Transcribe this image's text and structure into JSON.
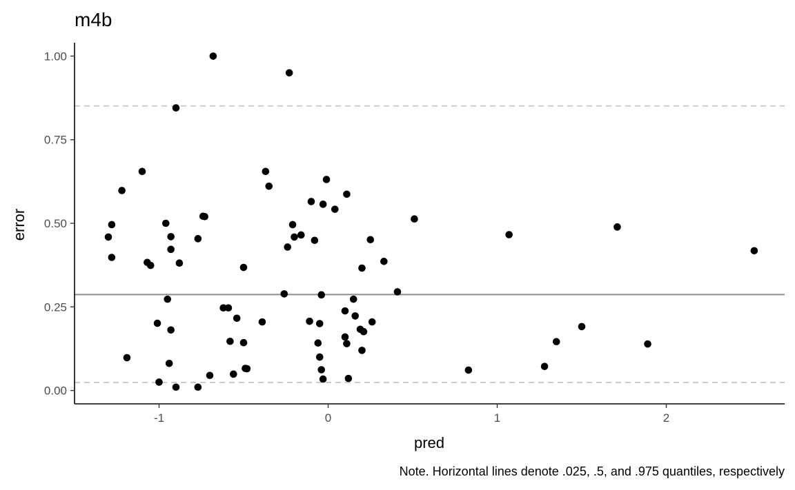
{
  "chart_data": {
    "type": "scatter",
    "title": "m4b",
    "xlabel": "pred",
    "ylabel": "error",
    "caption": "Note. Horizontal lines denote .025, .5, and .975 quantiles, respectively",
    "xlim": [
      -1.5,
      2.7
    ],
    "ylim": [
      -0.04,
      1.04
    ],
    "xticks": [
      -1,
      0,
      1,
      2
    ],
    "xtick_labels": [
      "-1",
      "0",
      "1",
      "2"
    ],
    "yticks": [
      0,
      0.25,
      0.5,
      0.75,
      1.0
    ],
    "ytick_labels": [
      "0.00",
      "0.25",
      "0.50",
      "0.75",
      "1.00"
    ],
    "grid": false,
    "colors": {
      "points": "#000000",
      "median_line": "#8c8c8c",
      "quantile_line": "#c8c8c8"
    },
    "reference_lines": [
      {
        "y": 0.024,
        "style": "dashed"
      },
      {
        "y": 0.287,
        "style": "solid"
      },
      {
        "y": 0.851,
        "style": "dashed"
      }
    ],
    "x": [
      -0.68,
      -0.23,
      -0.9,
      -1.1,
      -1.22,
      -1.28,
      -1.3,
      -1.28,
      -1.07,
      -1.05,
      -0.96,
      -0.93,
      -0.93,
      -0.88,
      -0.74,
      -0.73,
      -0.77,
      -0.37,
      -0.35,
      -0.5,
      -0.24,
      -0.21,
      -0.2,
      -0.16,
      -0.1,
      -0.08,
      -0.03,
      -0.01,
      0.04,
      0.11,
      0.25,
      0.2,
      0.33,
      0.51,
      -0.95,
      -1.01,
      -0.93,
      -1.19,
      -0.94,
      -1.0,
      -0.9,
      -0.77,
      -0.7,
      -0.62,
      -0.59,
      -0.58,
      -0.54,
      -0.56,
      -0.5,
      -0.49,
      -0.48,
      -0.39,
      -0.26,
      -0.11,
      -0.05,
      -0.04,
      -0.06,
      -0.05,
      -0.04,
      -0.03,
      0.1,
      0.11,
      0.1,
      0.12,
      0.15,
      0.16,
      0.19,
      0.21,
      0.2,
      0.26,
      0.41,
      0.83,
      1.07,
      1.28,
      1.35,
      1.5,
      1.71,
      1.89,
      2.52
    ],
    "y": [
      1.0,
      0.95,
      0.845,
      0.655,
      0.598,
      0.496,
      0.459,
      0.398,
      0.383,
      0.374,
      0.5,
      0.46,
      0.422,
      0.381,
      0.521,
      0.52,
      0.454,
      0.655,
      0.611,
      0.368,
      0.429,
      0.496,
      0.459,
      0.465,
      0.565,
      0.449,
      0.557,
      0.631,
      0.542,
      0.587,
      0.451,
      0.366,
      0.386,
      0.513,
      0.273,
      0.201,
      0.181,
      0.098,
      0.081,
      0.025,
      0.01,
      0.01,
      0.045,
      0.247,
      0.247,
      0.147,
      0.216,
      0.049,
      0.143,
      0.066,
      0.065,
      0.205,
      0.289,
      0.207,
      0.2,
      0.286,
      0.142,
      0.1,
      0.062,
      0.034,
      0.16,
      0.14,
      0.238,
      0.036,
      0.273,
      0.223,
      0.183,
      0.176,
      0.12,
      0.205,
      0.295,
      0.061,
      0.466,
      0.072,
      0.146,
      0.191,
      0.489,
      0.139,
      0.418
    ]
  }
}
